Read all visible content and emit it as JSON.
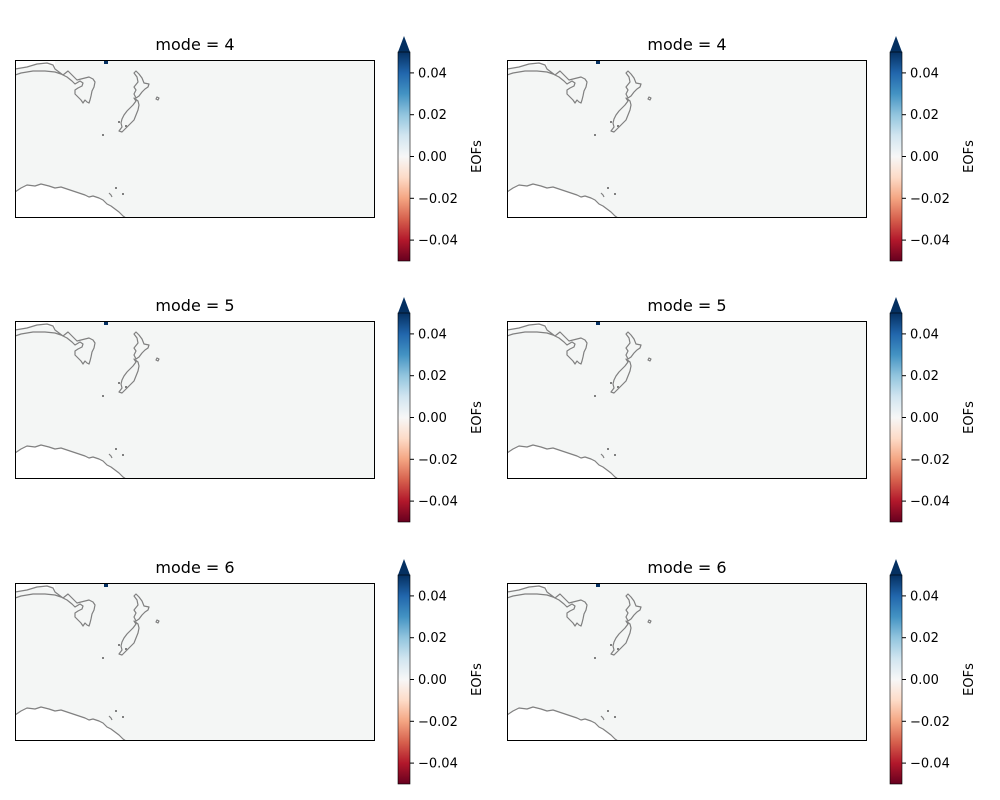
{
  "colors": {
    "map_fill": "#f4f6f5",
    "coastline": "#808080",
    "frame": "#000000",
    "anomaly_marker": "#053061",
    "colormap": [
      "#67001f",
      "#b2182b",
      "#d6604d",
      "#f4a582",
      "#fddbc7",
      "#f7f7f7",
      "#d1e5f0",
      "#92c5de",
      "#4393c3",
      "#2166ac",
      "#053061"
    ],
    "extend_max": "#053061"
  },
  "chart_data": [
    {
      "type": "heatmap",
      "title": "mode = 4",
      "colorbar": {
        "label": "EOFs",
        "range": [
          -0.05,
          0.05
        ],
        "ticks": [
          "0.04",
          "0.02",
          "0.00",
          "−0.02",
          "−0.04"
        ],
        "tick_values": [
          0.04,
          0.02,
          0.0,
          -0.02,
          -0.04
        ],
        "extend": "max"
      }
    },
    {
      "type": "heatmap",
      "title": "mode = 4",
      "colorbar": {
        "label": "EOFs",
        "range": [
          -0.05,
          0.05
        ],
        "ticks": [
          "0.04",
          "0.02",
          "0.00",
          "−0.02",
          "−0.04"
        ],
        "tick_values": [
          0.04,
          0.02,
          0.0,
          -0.02,
          -0.04
        ],
        "extend": "max"
      }
    },
    {
      "type": "heatmap",
      "title": "mode = 5",
      "colorbar": {
        "label": "EOFs",
        "range": [
          -0.05,
          0.05
        ],
        "ticks": [
          "0.04",
          "0.02",
          "0.00",
          "−0.02",
          "−0.04"
        ],
        "tick_values": [
          0.04,
          0.02,
          0.0,
          -0.02,
          -0.04
        ],
        "extend": "max"
      }
    },
    {
      "type": "heatmap",
      "title": "mode = 5",
      "colorbar": {
        "label": "EOFs",
        "range": [
          -0.05,
          0.05
        ],
        "ticks": [
          "0.04",
          "0.02",
          "0.00",
          "−0.02",
          "−0.04"
        ],
        "tick_values": [
          0.04,
          0.02,
          0.0,
          -0.02,
          -0.04
        ],
        "extend": "max"
      }
    },
    {
      "type": "heatmap",
      "title": "mode = 6",
      "colorbar": {
        "label": "EOFs",
        "range": [
          -0.05,
          0.05
        ],
        "ticks": [
          "0.04",
          "0.02",
          "0.00",
          "−0.02",
          "−0.04"
        ],
        "tick_values": [
          0.04,
          0.02,
          0.0,
          -0.02,
          -0.04
        ],
        "extend": "max"
      }
    },
    {
      "type": "heatmap",
      "title": "mode = 6",
      "colorbar": {
        "label": "EOFs",
        "range": [
          -0.05,
          0.05
        ],
        "ticks": [
          "0.04",
          "0.02",
          "0.00",
          "−0.02",
          "−0.04"
        ],
        "tick_values": [
          0.04,
          0.02,
          0.0,
          -0.02,
          -0.04
        ],
        "extend": "max"
      }
    }
  ]
}
